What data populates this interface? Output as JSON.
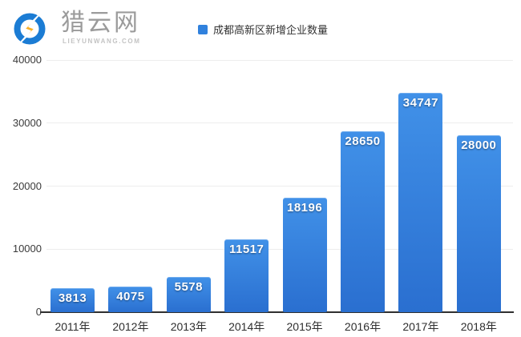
{
  "logo": {
    "brand": "猎云网",
    "domain": "LIEYUNWANG.COM",
    "icon": "lightning-circle-icon",
    "colors": {
      "ring": "#1b7cd4",
      "bolt": "#f6a41f",
      "bolt_light": "#fdc53a"
    }
  },
  "legend": {
    "label": "成都高新区新增企业数量",
    "swatch_color": "#3081dd"
  },
  "chart_data": {
    "type": "bar",
    "title": "成都高新区新增企业数量",
    "categories": [
      "2011年",
      "2012年",
      "2013年",
      "2014年",
      "2015年",
      "2016年",
      "2017年",
      "2018年"
    ],
    "values": [
      3813,
      4075,
      5578,
      11517,
      18196,
      28650,
      34747,
      28000
    ],
    "xlabel": "",
    "ylabel": "",
    "ylim": [
      0,
      40000
    ],
    "y_ticks": [
      0,
      10000,
      20000,
      30000,
      40000
    ],
    "grid": true,
    "legend_position": "top",
    "value_labels": "inside-top",
    "colors": {
      "bar_top": "#4191e8",
      "bar_bottom": "#2a6fd0",
      "gridline": "#ededed",
      "axis_line": "#2f2f2f",
      "tick_label": "#333333",
      "value_label": "#ffffff"
    }
  }
}
